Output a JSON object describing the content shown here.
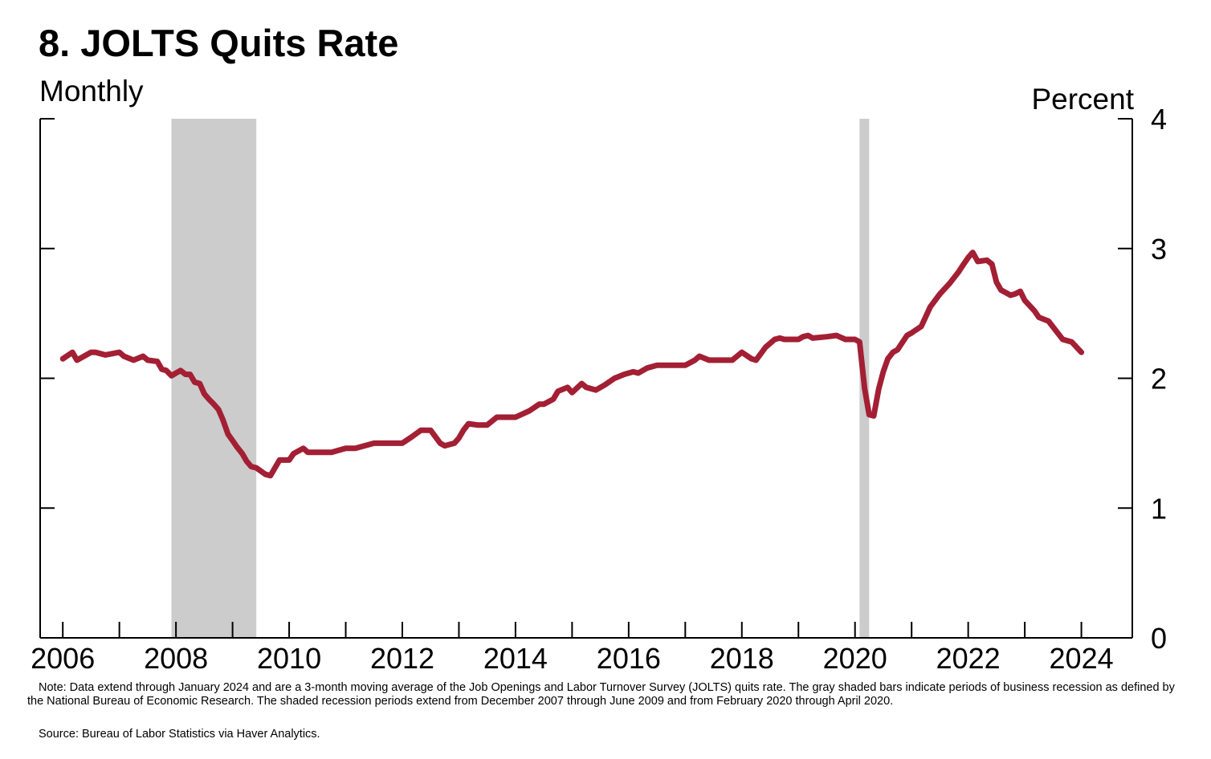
{
  "title": "8. JOLTS Quits Rate",
  "subtitle": "Monthly",
  "unit_label": "Percent",
  "note": "Note: Data extend through January 2024 and are a 3-month moving average of the Job Openings and Labor Turnover Survey (JOLTS) quits rate. The gray shaded bars indicate periods of business recession as defined by the National Bureau of Economic Research. The shaded recession periods extend from December 2007 through June 2009 and from February 2020 through April 2020.",
  "source": "Source: Bureau of Labor Statistics via Haver Analytics.",
  "colors": {
    "line": "#a31f34",
    "recession": "#cccccc",
    "axis": "#000000"
  },
  "chart_data": {
    "type": "line",
    "x_unit": "year",
    "xlim": [
      2005.6,
      2024.9
    ],
    "ylim": [
      0,
      4
    ],
    "x_ticks": [
      "2006",
      "2008",
      "2010",
      "2012",
      "2014",
      "2016",
      "2018",
      "2020",
      "2022",
      "2024"
    ],
    "y_ticks": [
      "0",
      "1",
      "2",
      "3",
      "4"
    ],
    "y_axis_side": "right",
    "grid": false,
    "recessions": [
      {
        "label": "December 2007 - June 2009",
        "start": 2007.92,
        "end": 2009.42
      },
      {
        "label": "February 2020 - April 2020",
        "start": 2020.08,
        "end": 2020.25
      }
    ],
    "series": [
      {
        "x": [
          2006.0,
          2006.17,
          2006.25,
          2006.5,
          2006.58,
          2006.75,
          2007.0,
          2007.08,
          2007.25,
          2007.42,
          2007.5,
          2007.67,
          2007.75,
          2007.83,
          2007.92,
          2008.0,
          2008.08,
          2008.17,
          2008.25,
          2008.33,
          2008.42,
          2008.5,
          2008.58,
          2008.67,
          2008.75,
          2008.83,
          2008.92,
          2009.0,
          2009.08,
          2009.17,
          2009.25,
          2009.33,
          2009.42,
          2009.58,
          2009.67,
          2009.83,
          2010.0,
          2010.08,
          2010.25,
          2010.33,
          2010.42,
          2010.5,
          2010.75,
          2011.0,
          2011.17,
          2011.5,
          2011.75,
          2012.0,
          2012.17,
          2012.33,
          2012.5,
          2012.67,
          2012.75,
          2012.92,
          2013.0,
          2013.08,
          2013.17,
          2013.33,
          2013.5,
          2013.67,
          2014.0,
          2014.25,
          2014.42,
          2014.5,
          2014.67,
          2014.75,
          2014.92,
          2015.0,
          2015.17,
          2015.25,
          2015.42,
          2015.58,
          2015.75,
          2015.92,
          2016.08,
          2016.17,
          2016.33,
          2016.5,
          2017.0,
          2017.17,
          2017.25,
          2017.42,
          2017.83,
          2018.0,
          2018.17,
          2018.25,
          2018.42,
          2018.58,
          2018.67,
          2018.75,
          2018.92,
          2019.0,
          2019.08,
          2019.17,
          2019.25,
          2019.5,
          2019.67,
          2019.83,
          2020.0,
          2020.08,
          2020.17,
          2020.25,
          2020.33,
          2020.42,
          2020.5,
          2020.58,
          2020.67,
          2020.75,
          2020.92,
          2021.0,
          2021.17,
          2021.33,
          2021.5,
          2021.67,
          2021.83,
          2021.92,
          2022.0,
          2022.08,
          2022.17,
          2022.33,
          2022.42,
          2022.5,
          2022.58,
          2022.75,
          2022.83,
          2022.92,
          2023.0,
          2023.17,
          2023.25,
          2023.42,
          2023.58,
          2023.67,
          2023.83,
          2024.0
        ],
        "y": [
          2.15,
          2.2,
          2.14,
          2.2,
          2.2,
          2.18,
          2.2,
          2.17,
          2.14,
          2.17,
          2.14,
          2.13,
          2.07,
          2.06,
          2.02,
          2.04,
          2.06,
          2.03,
          2.03,
          1.97,
          1.96,
          1.88,
          1.84,
          1.8,
          1.76,
          1.68,
          1.57,
          1.52,
          1.47,
          1.42,
          1.36,
          1.32,
          1.31,
          1.26,
          1.25,
          1.37,
          1.37,
          1.42,
          1.46,
          1.43,
          1.43,
          1.43,
          1.43,
          1.46,
          1.46,
          1.5,
          1.5,
          1.5,
          1.55,
          1.6,
          1.6,
          1.5,
          1.48,
          1.5,
          1.54,
          1.6,
          1.65,
          1.64,
          1.64,
          1.7,
          1.7,
          1.75,
          1.8,
          1.8,
          1.84,
          1.9,
          1.93,
          1.89,
          1.96,
          1.93,
          1.91,
          1.95,
          2.0,
          2.03,
          2.05,
          2.04,
          2.08,
          2.1,
          2.1,
          2.14,
          2.17,
          2.14,
          2.14,
          2.2,
          2.15,
          2.14,
          2.24,
          2.3,
          2.31,
          2.3,
          2.3,
          2.3,
          2.32,
          2.33,
          2.31,
          2.32,
          2.33,
          2.3,
          2.3,
          2.28,
          1.92,
          1.72,
          1.71,
          1.92,
          2.05,
          2.15,
          2.2,
          2.22,
          2.33,
          2.35,
          2.4,
          2.55,
          2.65,
          2.73,
          2.82,
          2.88,
          2.93,
          2.97,
          2.9,
          2.91,
          2.88,
          2.74,
          2.68,
          2.64,
          2.65,
          2.67,
          2.6,
          2.52,
          2.47,
          2.44,
          2.35,
          2.3,
          2.28,
          2.2
        ]
      }
    ]
  }
}
